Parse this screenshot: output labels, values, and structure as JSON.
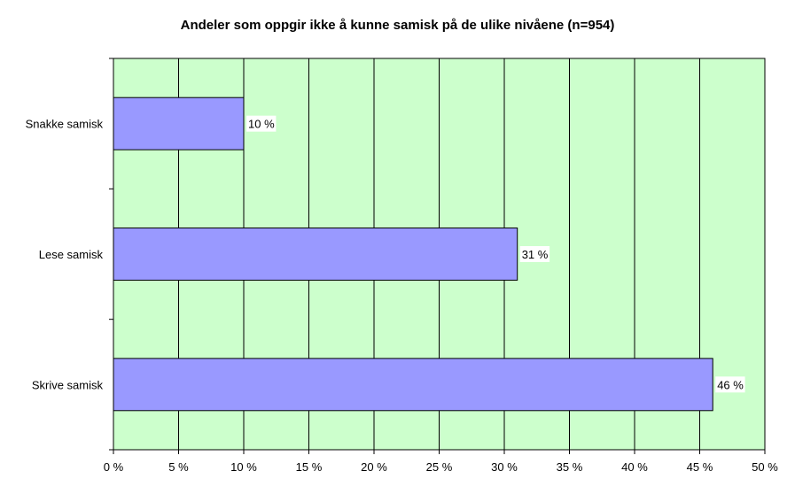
{
  "chart_data": {
    "type": "bar",
    "orientation": "horizontal",
    "title": "Andeler som oppgir ikke å kunne samisk på de ulike nivåene (n=954)",
    "categories": [
      "Snakke samisk",
      "Lese samisk",
      "Skrive samisk"
    ],
    "values": [
      10,
      31,
      46
    ],
    "value_labels": [
      "10 %",
      "31 %",
      "46 %"
    ],
    "xlim": [
      0,
      50
    ],
    "xticks": [
      0,
      5,
      10,
      15,
      20,
      25,
      30,
      35,
      40,
      45,
      50
    ],
    "xtick_labels": [
      "0 %",
      "5 %",
      "10 %",
      "15 %",
      "20 %",
      "25 %",
      "30 %",
      "35 %",
      "40 %",
      "45 %",
      "50 %"
    ],
    "grid": true,
    "colors": {
      "plot_background": "#ccffcc",
      "bar_fill": "#9999ff",
      "bar_stroke": "#000000",
      "grid": "#000000"
    }
  }
}
